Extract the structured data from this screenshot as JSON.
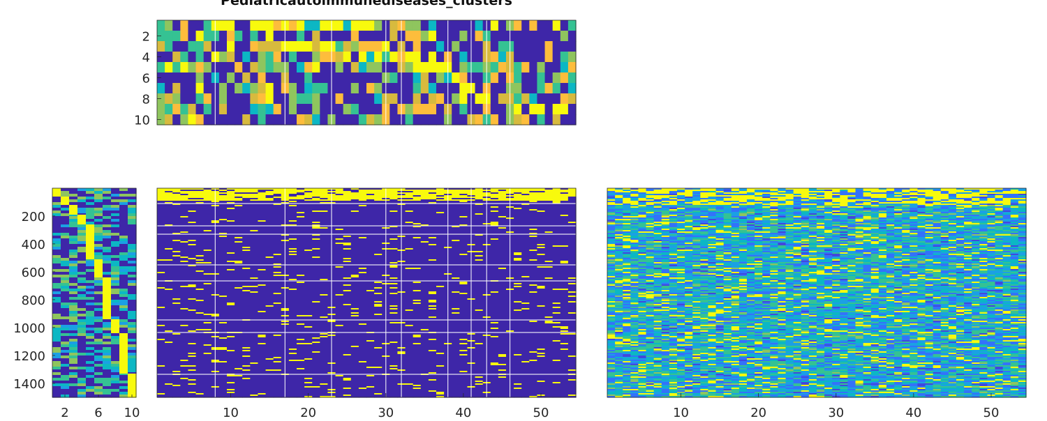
{
  "title": "Pediatricautoimmunediseases_clusters",
  "colormap": {
    "name": "parula",
    "stops": [
      "#3e26a8",
      "#4247dd",
      "#3372fa",
      "#1ba0e4",
      "#0cb7c4",
      "#35c293",
      "#8fc55e",
      "#d7ba3e",
      "#fdbd3c",
      "#f8fa0d"
    ]
  },
  "chart_data": [
    {
      "type": "heatmap",
      "name": "top",
      "rows": 10,
      "cols": 54,
      "xticks": [],
      "yticks": [
        {
          "value": 2,
          "label": "2"
        },
        {
          "value": 4,
          "label": "4"
        },
        {
          "value": 6,
          "label": "6"
        },
        {
          "value": 8,
          "label": "8"
        },
        {
          "value": 10,
          "label": "10"
        }
      ],
      "separator_cols": [
        8,
        17,
        23,
        30,
        32,
        38,
        41,
        43,
        46
      ],
      "separator_rows": []
    },
    {
      "type": "heatmap",
      "name": "left",
      "rows": 1500,
      "cols": 10,
      "xticks": [
        {
          "value": 2,
          "label": "2"
        },
        {
          "value": 6,
          "label": "6"
        },
        {
          "value": 10,
          "label": "10"
        }
      ],
      "yticks": [
        {
          "value": 200,
          "label": "200"
        },
        {
          "value": 400,
          "label": "400"
        },
        {
          "value": 600,
          "label": "600"
        },
        {
          "value": 800,
          "label": "800"
        },
        {
          "value": 1000,
          "label": "1000"
        },
        {
          "value": 1200,
          "label": "1200"
        },
        {
          "value": 1400,
          "label": "1400"
        }
      ],
      "separator_cols": [],
      "separator_rows": []
    },
    {
      "type": "heatmap",
      "name": "middle",
      "rows": 1500,
      "cols": 54,
      "xticks": [
        {
          "value": 10,
          "label": "10"
        },
        {
          "value": 20,
          "label": "20"
        },
        {
          "value": 30,
          "label": "30"
        },
        {
          "value": 40,
          "label": "40"
        },
        {
          "value": 50,
          "label": "50"
        }
      ],
      "yticks": [],
      "separator_cols": [
        8,
        17,
        23,
        30,
        32,
        38,
        41,
        43,
        46
      ],
      "separator_rows": [
        110,
        270,
        330,
        550,
        665,
        945,
        1035,
        1335
      ]
    },
    {
      "type": "heatmap",
      "name": "right",
      "rows": 1500,
      "cols": 54,
      "xticks": [
        {
          "value": 10,
          "label": "10"
        },
        {
          "value": 20,
          "label": "20"
        },
        {
          "value": 30,
          "label": "30"
        },
        {
          "value": 40,
          "label": "40"
        },
        {
          "value": 50,
          "label": "50"
        }
      ],
      "yticks": [],
      "separator_cols": [],
      "separator_rows": []
    }
  ]
}
